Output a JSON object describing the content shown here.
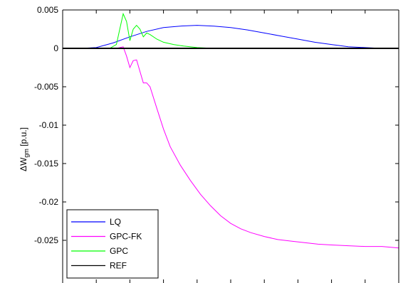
{
  "chart_data": {
    "type": "line",
    "ylabel_main": "ΔW",
    "ylabel_sub": "gm",
    "ylabel_unit": " [p.u.]",
    "ylim": [
      -0.028,
      0.005
    ],
    "xlim": [
      0,
      100
    ],
    "yticks": [
      0.005,
      0,
      -0.005,
      -0.01,
      -0.015,
      -0.02,
      -0.025
    ],
    "ytick_labels": [
      "0.005",
      "0",
      "-0.005",
      "-0.01",
      "-0.015",
      "-0.02",
      "-0.025"
    ],
    "xticks": [
      0,
      10,
      20,
      30,
      40,
      50,
      60,
      70,
      80,
      90,
      100
    ],
    "grid": false,
    "legend_position": "bottom-left",
    "series": [
      {
        "name": "LQ",
        "color": "#0000ff",
        "x": [
          0,
          5,
          10,
          15,
          20,
          25,
          30,
          35,
          40,
          45,
          50,
          55,
          60,
          65,
          70,
          75,
          80,
          85,
          90,
          95,
          100
        ],
        "y": [
          0,
          0,
          0.0001,
          0.0007,
          0.0015,
          0.0022,
          0.0027,
          0.0029,
          0.003,
          0.0029,
          0.0027,
          0.0024,
          0.002,
          0.0016,
          0.0012,
          0.0008,
          0.0005,
          0.0002,
          0.0001,
          0,
          0
        ]
      },
      {
        "name": "GPC-FK",
        "color": "#ff00ff",
        "x": [
          0,
          10,
          14,
          16,
          18,
          19,
          20,
          21,
          22,
          24,
          25,
          26,
          28,
          30,
          32,
          35,
          38,
          41,
          44,
          47,
          50,
          53,
          56,
          60,
          64,
          68,
          72,
          76,
          80,
          85,
          90,
          95,
          100
        ],
        "y": [
          0,
          0,
          0,
          0,
          0.0002,
          -0.001,
          -0.0025,
          -0.0016,
          -0.0015,
          -0.0045,
          -0.0045,
          -0.005,
          -0.0078,
          -0.0105,
          -0.0128,
          -0.0152,
          -0.0172,
          -0.019,
          -0.0205,
          -0.0218,
          -0.0228,
          -0.0235,
          -0.024,
          -0.0245,
          -0.0249,
          -0.0251,
          -0.0253,
          -0.0255,
          -0.0256,
          -0.0257,
          -0.0258,
          -0.0258,
          -0.026
        ]
      },
      {
        "name": "GPC",
        "color": "#00ff00",
        "x": [
          0,
          10,
          14,
          16,
          17,
          18,
          19,
          20,
          21,
          22,
          23,
          24,
          25,
          26,
          28,
          30,
          33,
          36,
          40,
          45,
          50,
          100
        ],
        "y": [
          0,
          0,
          0,
          0.0005,
          0.0025,
          0.0045,
          0.0035,
          0.001,
          0.0025,
          0.003,
          0.0025,
          0.0015,
          0.002,
          0.0018,
          0.0012,
          0.0008,
          0.0005,
          0.0003,
          0.0001,
          0,
          0,
          0
        ]
      },
      {
        "name": "REF",
        "color": "#000000",
        "x": [
          0,
          100
        ],
        "y": [
          0,
          0
        ]
      }
    ]
  }
}
